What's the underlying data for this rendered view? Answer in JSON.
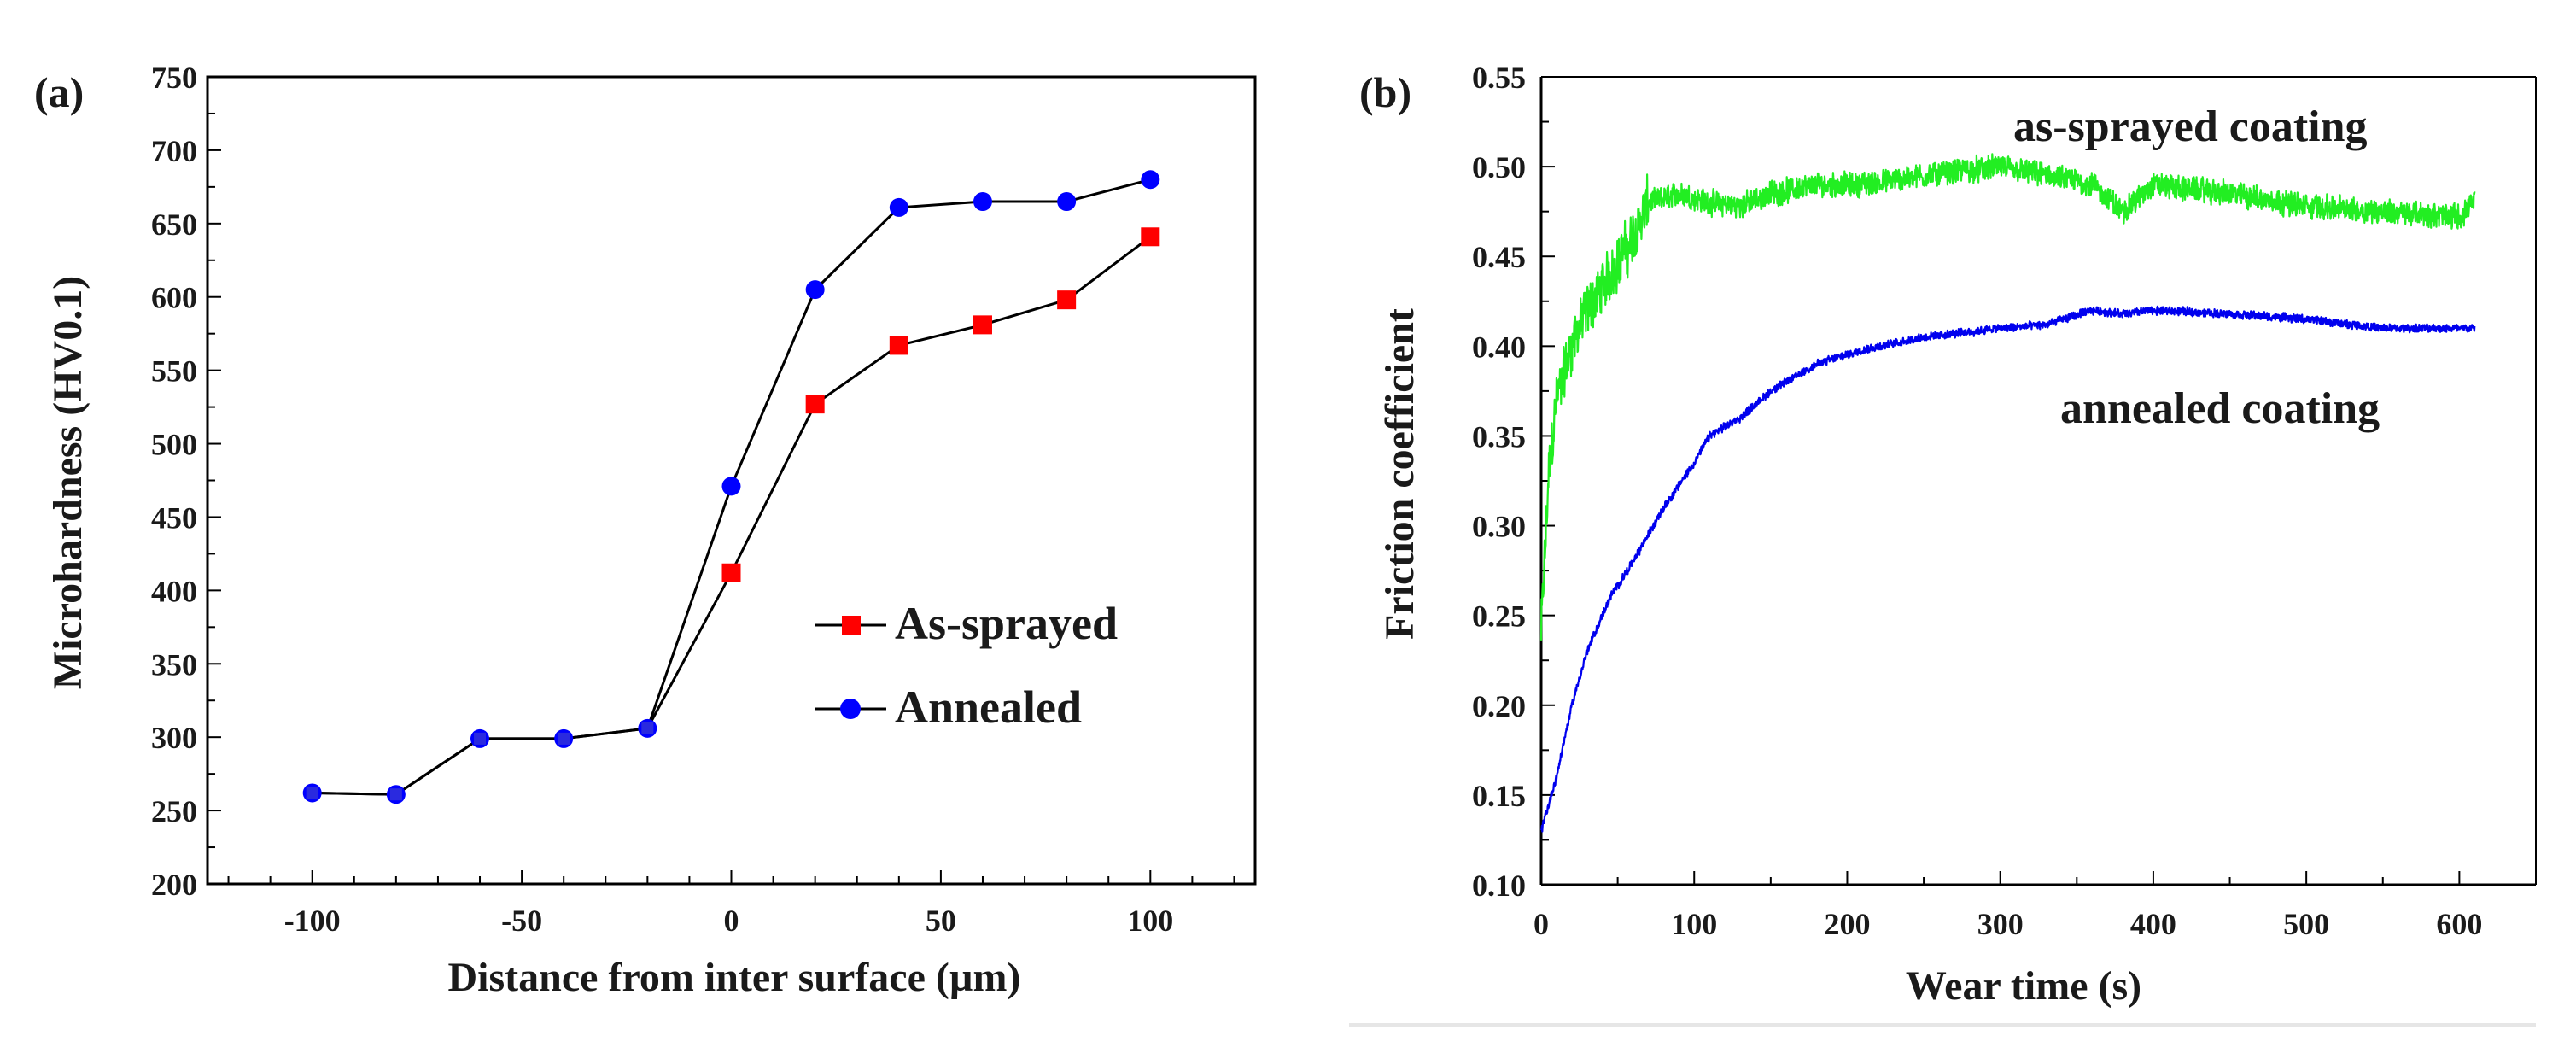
{
  "chart_data": [
    {
      "panel": "(a)",
      "type": "line",
      "title": "",
      "xlabel": "Distance from inter surface (µm)",
      "ylabel": "Microhardness (HV0.1)",
      "xlim": [
        -125,
        125
      ],
      "ylim": [
        200,
        750
      ],
      "xticks": [
        -100,
        -50,
        0,
        50,
        100
      ],
      "yticks": [
        200,
        250,
        300,
        350,
        400,
        450,
        500,
        550,
        600,
        650,
        700,
        750
      ],
      "x": [
        -100,
        -80,
        -60,
        -40,
        -20,
        0,
        20,
        40,
        60,
        80,
        100
      ],
      "series": [
        {
          "name": "As-sprayed",
          "marker": "square",
          "color": "#ff0000",
          "values": [
            262,
            261,
            299,
            299,
            306,
            412,
            527,
            567,
            581,
            598,
            641
          ]
        },
        {
          "name": "Annealed",
          "marker": "circle",
          "color": "#0000ff",
          "values": [
            262,
            261,
            299,
            299,
            306,
            471,
            605,
            661,
            665,
            665,
            680
          ]
        }
      ],
      "legend_position": "bottom-right"
    },
    {
      "panel": "(b)",
      "type": "line",
      "title": "",
      "xlabel": "Wear time (s)",
      "ylabel": "Friction coefficient",
      "xlim": [
        0,
        650
      ],
      "ylim": [
        0.1,
        0.55
      ],
      "xticks": [
        0,
        100,
        200,
        300,
        400,
        500,
        600
      ],
      "yticks": [
        0.1,
        0.15,
        0.2,
        0.25,
        0.3,
        0.35,
        0.4,
        0.45,
        0.5,
        0.55
      ],
      "series": [
        {
          "name": "as-sprayed coating",
          "color": "#22ee22",
          "x": [
            0,
            5,
            10,
            20,
            30,
            45,
            60,
            70,
            90,
            110,
            130,
            150,
            180,
            210,
            250,
            300,
            330,
            360,
            380,
            400,
            450,
            500,
            550,
            600,
            610
          ],
          "values": [
            0.24,
            0.33,
            0.37,
            0.4,
            0.42,
            0.44,
            0.46,
            0.48,
            0.485,
            0.48,
            0.478,
            0.485,
            0.49,
            0.49,
            0.495,
            0.5,
            0.495,
            0.49,
            0.475,
            0.49,
            0.485,
            0.478,
            0.475,
            0.472,
            0.48
          ],
          "noise": 0.012
        },
        {
          "name": "annealed coating",
          "color": "#0000ee",
          "x": [
            0,
            10,
            20,
            30,
            45,
            60,
            80,
            100,
            110,
            130,
            150,
            180,
            210,
            250,
            300,
            330,
            360,
            380,
            400,
            450,
            500,
            550,
            600,
            610
          ],
          "values": [
            0.13,
            0.16,
            0.2,
            0.23,
            0.26,
            0.28,
            0.31,
            0.335,
            0.35,
            0.36,
            0.375,
            0.39,
            0.398,
            0.405,
            0.41,
            0.412,
            0.42,
            0.418,
            0.42,
            0.418,
            0.415,
            0.41,
            0.41,
            0.41
          ],
          "noise": 0.004
        }
      ],
      "annotations": [
        "as-sprayed coating",
        "annealed coating"
      ]
    }
  ]
}
